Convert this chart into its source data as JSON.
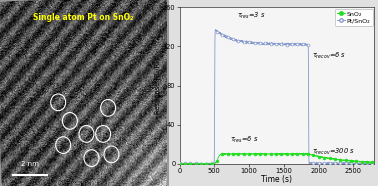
{
  "xlabel": "Time (s)",
  "ylabel": "Response (R₀/Rₒ)",
  "xlim": [
    0,
    2800
  ],
  "ylim": [
    0,
    160
  ],
  "yticks": [
    0,
    40,
    80,
    120,
    160
  ],
  "xticks": [
    0,
    500,
    1000,
    1500,
    2000,
    2500
  ],
  "sno2_color": "#22dd22",
  "ptsno2_color": "#8899cc",
  "legend_entries": [
    "SnO₂",
    "Pt/SnO₂"
  ],
  "background_color": "#ffffff",
  "gas_on": 500,
  "gas_off": 1850,
  "pt_peak": 138,
  "pt_plateau": 122,
  "sno2_peak": 10,
  "title_text": "Single atom Pt on SnO₂",
  "scalebar_text": "2 nm",
  "circles": [
    [
      0.38,
      0.78
    ],
    [
      0.42,
      0.65
    ],
    [
      0.52,
      0.72
    ],
    [
      0.62,
      0.72
    ],
    [
      0.55,
      0.85
    ],
    [
      0.67,
      0.83
    ],
    [
      0.35,
      0.55
    ],
    [
      0.65,
      0.58
    ]
  ]
}
